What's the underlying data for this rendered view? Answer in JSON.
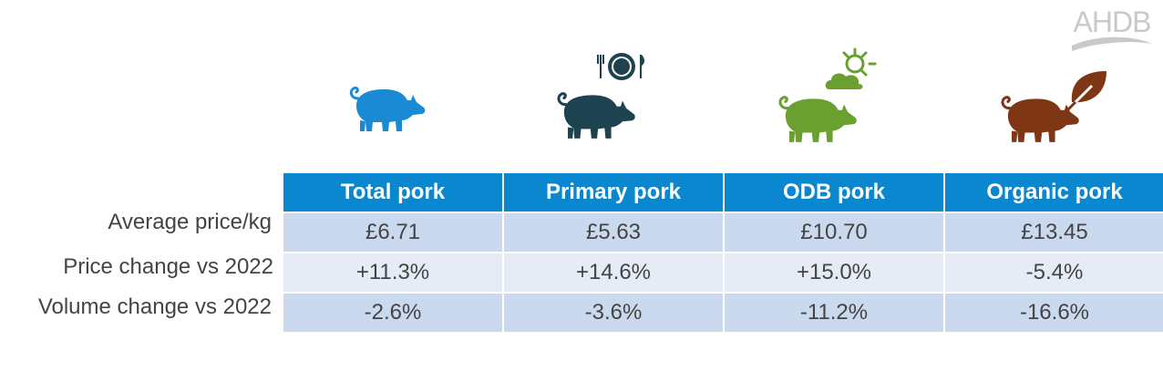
{
  "logo": {
    "text": "AHDB"
  },
  "colors": {
    "total": "#1a8ad4",
    "primary": "#1e4350",
    "odb": "#6aa02f",
    "organic": "#7f3615",
    "header": "#0a87cf"
  },
  "icons": [
    "pig-icon",
    "plate-cutlery-icon",
    "sun-cloud-icon",
    "leaf-icon"
  ],
  "table": {
    "columns": [
      "Total pork",
      "Primary pork",
      "ODB pork",
      "Organic pork"
    ],
    "rows": [
      {
        "label": "Average price/kg",
        "values": [
          "£6.71",
          "£5.63",
          "£10.70",
          "£13.45"
        ]
      },
      {
        "label": "Price change vs 2022",
        "values": [
          "+11.3%",
          "+14.6%",
          "+15.0%",
          "-5.4%"
        ]
      },
      {
        "label": "Volume change vs 2022",
        "values": [
          "-2.6%",
          "-3.6%",
          "-11.2%",
          "-16.6%"
        ]
      }
    ]
  }
}
